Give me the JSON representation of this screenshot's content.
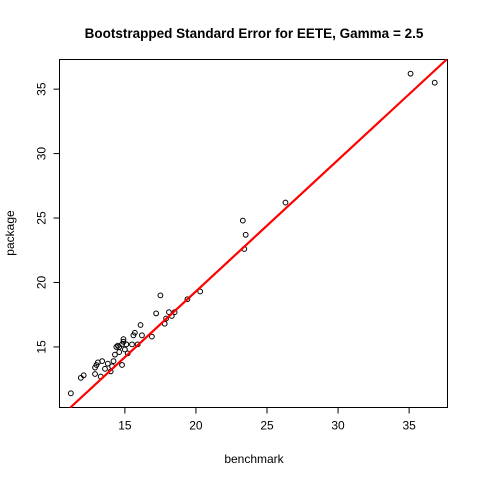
{
  "chart_data": {
    "type": "scatter",
    "title": "Bootstrapped Standard Error for EETE, Gamma =  2.5",
    "xlabel": "benchmark",
    "ylabel": "package",
    "xlim": [
      10.4,
      37.7
    ],
    "ylim": [
      10.3,
      37.3
    ],
    "xticks": [
      15,
      20,
      25,
      30,
      35
    ],
    "yticks": [
      15,
      20,
      25,
      30,
      35
    ],
    "grid": false,
    "fit_line": {
      "intercept": -1.09,
      "slope": 1.02,
      "color": "#ff0000"
    },
    "series": [
      {
        "marker": "open-circle",
        "points": [
          [
            11.2,
            11.4
          ],
          [
            11.9,
            12.6
          ],
          [
            12.1,
            12.8
          ],
          [
            12.9,
            12.9
          ],
          [
            12.9,
            13.4
          ],
          [
            13.0,
            13.6
          ],
          [
            13.1,
            13.8
          ],
          [
            13.3,
            12.7
          ],
          [
            13.4,
            13.9
          ],
          [
            13.6,
            13.3
          ],
          [
            13.8,
            13.7
          ],
          [
            14.0,
            13.1
          ],
          [
            14.1,
            13.5
          ],
          [
            14.2,
            13.9
          ],
          [
            14.3,
            14.4
          ],
          [
            14.4,
            15.0
          ],
          [
            14.5,
            15.1
          ],
          [
            14.6,
            14.6
          ],
          [
            14.6,
            15.0
          ],
          [
            14.8,
            15.2
          ],
          [
            14.8,
            13.6
          ],
          [
            14.9,
            15.4
          ],
          [
            14.9,
            15.6
          ],
          [
            15.0,
            14.8
          ],
          [
            15.1,
            15.2
          ],
          [
            15.2,
            14.5
          ],
          [
            15.5,
            15.2
          ],
          [
            15.6,
            15.9
          ],
          [
            15.7,
            16.1
          ],
          [
            15.9,
            15.2
          ],
          [
            16.1,
            16.7
          ],
          [
            16.2,
            15.9
          ],
          [
            16.9,
            15.8
          ],
          [
            17.2,
            17.6
          ],
          [
            17.5,
            19.0
          ],
          [
            17.8,
            16.8
          ],
          [
            17.9,
            17.2
          ],
          [
            18.1,
            17.7
          ],
          [
            18.3,
            17.4
          ],
          [
            18.5,
            17.7
          ],
          [
            19.4,
            18.7
          ],
          [
            20.3,
            19.3
          ],
          [
            23.3,
            24.8
          ],
          [
            23.4,
            22.6
          ],
          [
            23.5,
            23.7
          ],
          [
            26.3,
            26.2
          ],
          [
            35.1,
            36.2
          ],
          [
            36.8,
            35.5
          ]
        ]
      }
    ]
  }
}
